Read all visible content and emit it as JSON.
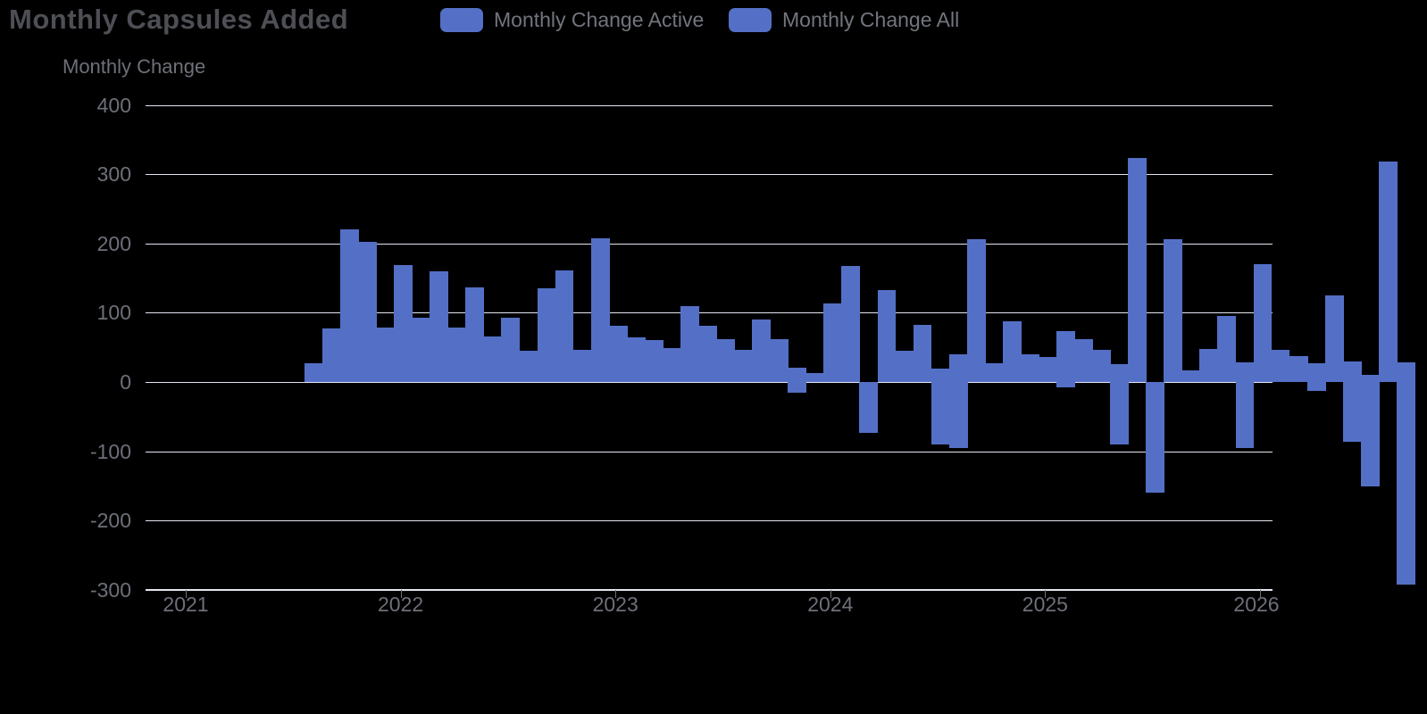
{
  "title": "Monthly Capsules Added",
  "legend": {
    "items": [
      {
        "label": "Monthly Change Active",
        "color": "#5470C6"
      },
      {
        "label": "Monthly Change All",
        "color": "#5470C6"
      }
    ]
  },
  "y_axis": {
    "name": "Monthly Change",
    "tick_labels": [
      "400",
      "300",
      "200",
      "100",
      "0",
      "-100",
      "-200",
      "-300"
    ]
  },
  "x_axis": {
    "tick_labels": [
      "2021",
      "2022",
      "2023",
      "2024",
      "2025",
      "2026"
    ]
  },
  "colors": {
    "background": "#000000",
    "bar": "#5470C6",
    "gridline": "#E3E6F0",
    "axis_text": "#6E7079",
    "title_text": "#4E4F55",
    "legend_text": "#72757E",
    "tick_mark": "#6E7079"
  },
  "chart_data": {
    "type": "bar",
    "title": "Monthly Capsules Added",
    "ylabel": "Monthly Change",
    "ylim": [
      -300,
      400
    ],
    "grid": true,
    "legend_position": "top",
    "x": [
      "2020-12",
      "2021-01",
      "2021-02",
      "2021-03",
      "2021-04",
      "2021-05",
      "2021-06",
      "2021-07",
      "2021-08",
      "2021-09",
      "2021-10",
      "2021-11",
      "2021-12",
      "2022-01",
      "2022-02",
      "2022-03",
      "2022-04",
      "2022-05",
      "2022-06",
      "2022-07",
      "2022-08",
      "2022-09",
      "2022-10",
      "2022-11",
      "2022-12",
      "2023-01",
      "2023-02",
      "2023-03",
      "2023-04",
      "2023-05",
      "2023-06",
      "2023-07",
      "2023-08",
      "2023-09",
      "2023-10",
      "2023-11",
      "2023-12",
      "2024-01",
      "2024-02",
      "2024-03",
      "2024-04",
      "2024-05",
      "2024-06",
      "2024-07",
      "2024-08",
      "2024-09",
      "2024-10",
      "2024-11",
      "2024-12",
      "2025-01",
      "2025-02",
      "2025-03",
      "2025-04",
      "2025-05",
      "2025-06",
      "2025-07",
      "2025-08",
      "2025-09",
      "2025-10",
      "2025-11",
      "2025-12",
      "2026-01"
    ],
    "series": [
      {
        "name": "Monthly Change Active",
        "values": [
          27,
          77,
          220,
          203,
          78,
          169,
          93,
          160,
          78,
          137,
          66,
          93,
          45,
          136,
          161,
          47,
          207,
          81,
          65,
          60,
          49,
          110,
          81,
          62,
          46,
          90,
          62,
          21,
          13,
          114,
          168,
          -74,
          133,
          45,
          83,
          19,
          40,
          206,
          27,
          88,
          40,
          36,
          74,
          62,
          46,
          26,
          324,
          -160,
          206,
          17,
          48,
          95,
          28,
          170,
          47,
          38,
          27,
          125,
          30,
          10,
          318,
          28
        ]
      },
      {
        "name": "Monthly Change All",
        "values": [
          27,
          77,
          220,
          203,
          78,
          169,
          93,
          160,
          78,
          137,
          66,
          93,
          45,
          136,
          161,
          47,
          207,
          81,
          65,
          60,
          49,
          110,
          81,
          62,
          46,
          90,
          62,
          -16,
          13,
          114,
          168,
          -74,
          133,
          45,
          83,
          -90,
          -96,
          206,
          27,
          88,
          40,
          36,
          -8,
          62,
          46,
          -90,
          324,
          -160,
          206,
          17,
          48,
          95,
          -95,
          170,
          47,
          38,
          -13,
          125,
          -87,
          -151,
          318,
          -293
        ]
      }
    ]
  }
}
